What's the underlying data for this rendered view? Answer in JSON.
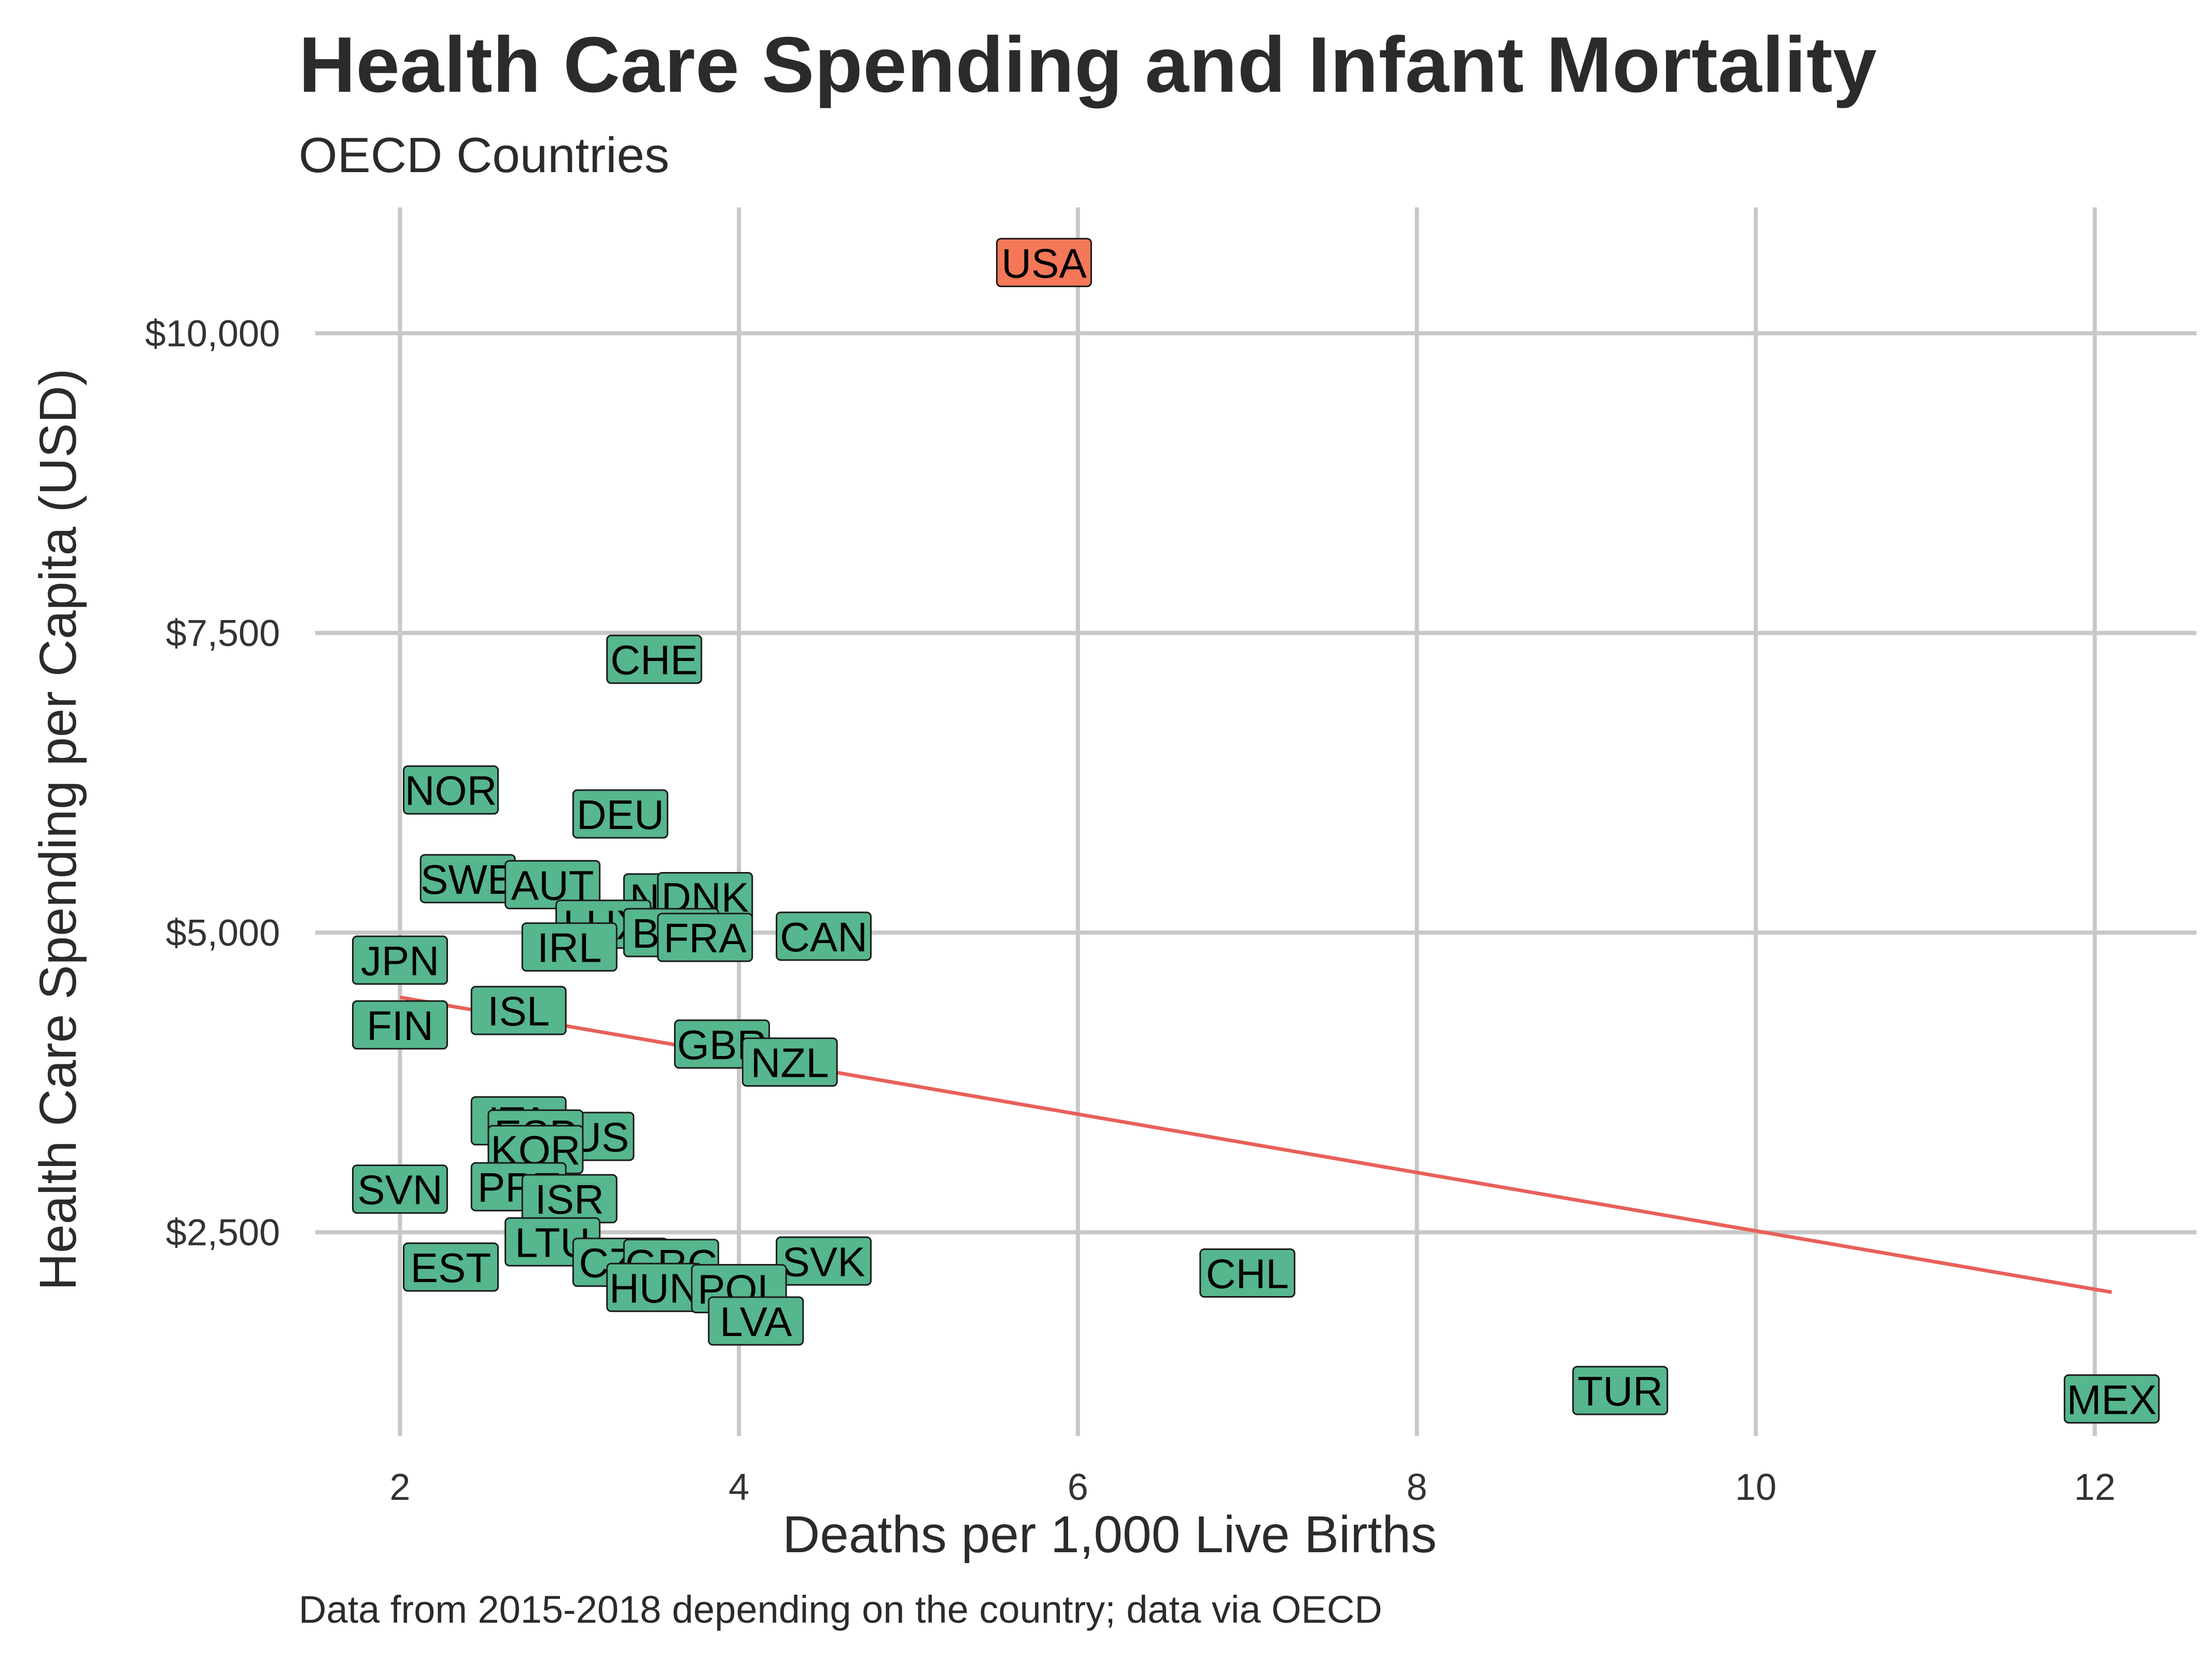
{
  "chart_data": {
    "type": "scatter",
    "title": "Health Care Spending and Infant Mortality",
    "subtitle": "OECD Countries",
    "caption": "Data from 2015-2018 depending on the country; data via OECD",
    "xlabel": "Deaths per 1,000 Live Births",
    "ylabel": "Health Care Spending per Capita (USD)",
    "xlim": [
      1.5,
      12.6
    ],
    "ylim": [
      800,
      11050
    ],
    "x_ticks": [
      2,
      4,
      6,
      8,
      10,
      12
    ],
    "y_ticks": [
      2500,
      5000,
      7500,
      10000
    ],
    "y_tick_labels": [
      "$2,500",
      "$5,000",
      "$7,500",
      "$10,000"
    ],
    "grid": true,
    "trend_line": {
      "x": [
        2.0,
        12.1
      ],
      "y": [
        4460,
        2000
      ],
      "color": "#e8605a"
    },
    "colors": {
      "default": "#56b68e",
      "highlight": "#f47858",
      "grid": "#c8c8c8"
    },
    "points": [
      {
        "label": "USA",
        "x": 5.8,
        "y": 10590,
        "highlight": true
      },
      {
        "label": "CHE",
        "x": 3.5,
        "y": 7280
      },
      {
        "label": "NOR",
        "x": 2.3,
        "y": 6190
      },
      {
        "label": "DEU",
        "x": 3.3,
        "y": 5990
      },
      {
        "label": "SWE",
        "x": 2.4,
        "y": 5450
      },
      {
        "label": "AUT",
        "x": 2.9,
        "y": 5400
      },
      {
        "label": "NLD",
        "x": 3.6,
        "y": 5290
      },
      {
        "label": "DNK",
        "x": 3.8,
        "y": 5300
      },
      {
        "label": "LUX",
        "x": 3.2,
        "y": 5070
      },
      {
        "label": "BEL",
        "x": 3.6,
        "y": 5000
      },
      {
        "label": "FRA",
        "x": 3.8,
        "y": 4960
      },
      {
        "label": "CAN",
        "x": 4.5,
        "y": 4970
      },
      {
        "label": "IRL",
        "x": 3.0,
        "y": 4880
      },
      {
        "label": "JPN",
        "x": 2.0,
        "y": 4770
      },
      {
        "label": "ISL",
        "x": 2.7,
        "y": 4350
      },
      {
        "label": "FIN",
        "x": 2.0,
        "y": 4230
      },
      {
        "label": "GBR",
        "x": 3.9,
        "y": 4070
      },
      {
        "label": "NZL",
        "x": 4.3,
        "y": 3920
      },
      {
        "label": "AUS",
        "x": 3.1,
        "y": 3300
      },
      {
        "label": "ITA",
        "x": 2.7,
        "y": 3430
      },
      {
        "label": "ESP",
        "x": 2.8,
        "y": 3320
      },
      {
        "label": "KOR",
        "x": 2.8,
        "y": 3190
      },
      {
        "label": "SVN",
        "x": 2.0,
        "y": 2860
      },
      {
        "label": "PRT",
        "x": 2.7,
        "y": 2880
      },
      {
        "label": "ISR",
        "x": 3.0,
        "y": 2780
      },
      {
        "label": "LTU",
        "x": 2.9,
        "y": 2420
      },
      {
        "label": "CZE",
        "x": 3.3,
        "y": 2250
      },
      {
        "label": "GRC",
        "x": 3.6,
        "y": 2240
      },
      {
        "label": "SVK",
        "x": 4.5,
        "y": 2260
      },
      {
        "label": "EST",
        "x": 2.3,
        "y": 2210
      },
      {
        "label": "CHL",
        "x": 7.0,
        "y": 2160
      },
      {
        "label": "HUN",
        "x": 3.5,
        "y": 2040
      },
      {
        "label": "POL",
        "x": 4.0,
        "y": 2030
      },
      {
        "label": "LVA",
        "x": 4.1,
        "y": 1760
      },
      {
        "label": "TUR",
        "x": 9.2,
        "y": 1180
      },
      {
        "label": "MEX",
        "x": 12.1,
        "y": 1110
      }
    ]
  }
}
